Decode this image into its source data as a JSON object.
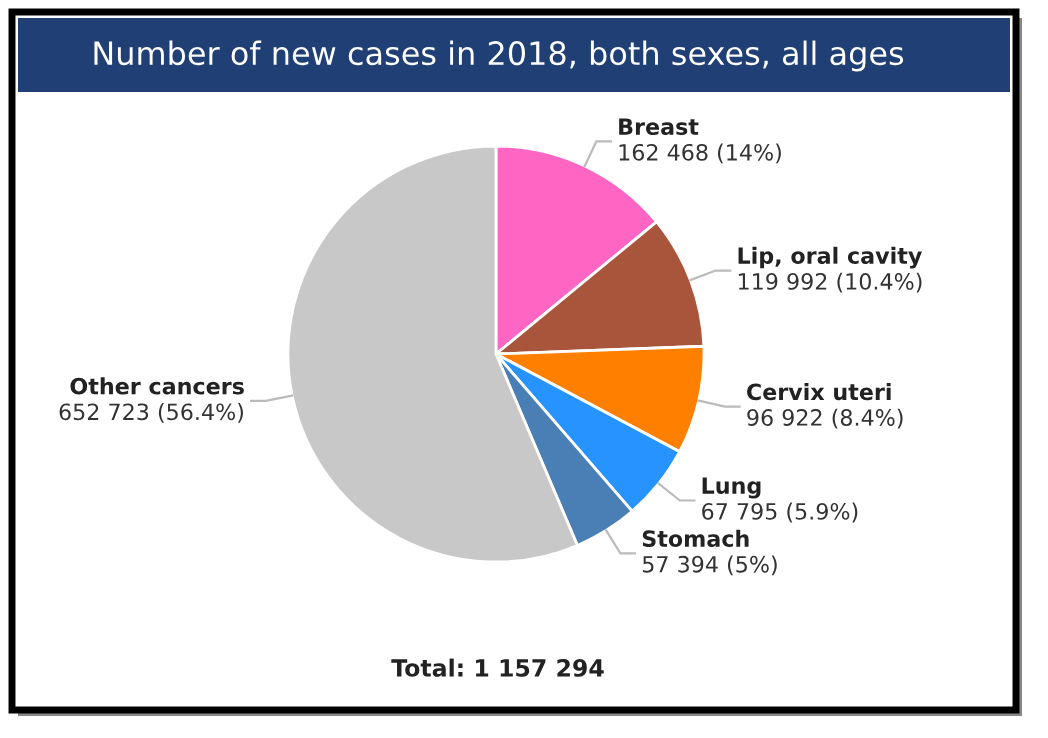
{
  "chart_data": {
    "type": "pie",
    "title": "Number of new cases in 2018, both sexes, all ages",
    "categories": [
      "Breast",
      "Lip, oral cavity",
      "Cervix uteri",
      "Lung",
      "Stomach",
      "Other cancers"
    ],
    "values": [
      162468,
      119992,
      96922,
      67795,
      57394,
      652723
    ],
    "colors": [
      "#ff66c4",
      "#a9553b",
      "#ff7f00",
      "#2693ff",
      "#4a7fb5",
      "#c8c8c8"
    ],
    "value_labels": [
      "162 468 (14%)",
      "119 992 (10.4%)",
      "96 922 (8.4%)",
      "67 795 (5.9%)",
      "57 394 (5%)",
      "652 723 (56.4%)"
    ],
    "annotations": [
      "Total: 1 157 294"
    ]
  }
}
